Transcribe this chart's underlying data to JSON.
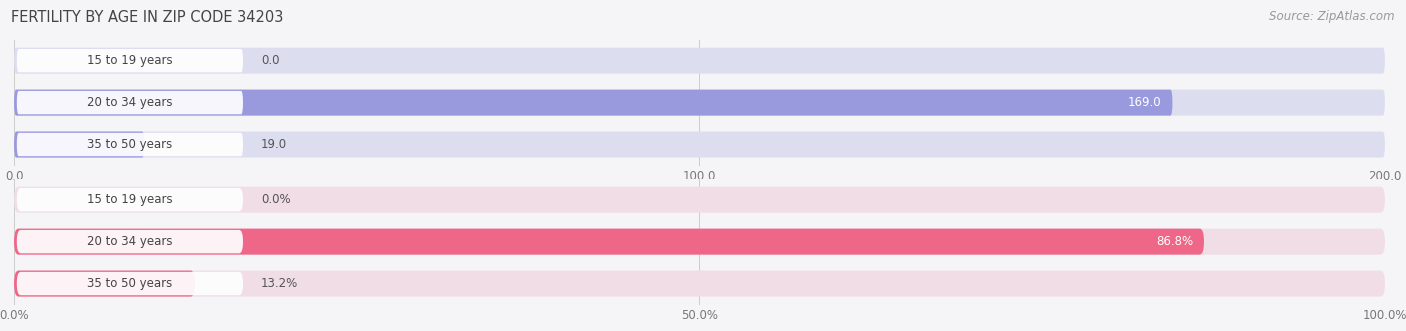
{
  "title": "FERTILITY BY AGE IN ZIP CODE 34203",
  "source": "Source: ZipAtlas.com",
  "top_chart": {
    "categories": [
      "15 to 19 years",
      "20 to 34 years",
      "35 to 50 years"
    ],
    "values": [
      0.0,
      169.0,
      19.0
    ],
    "xlim": [
      0,
      200
    ],
    "xticks": [
      0.0,
      100.0,
      200.0
    ],
    "xtick_labels": [
      "0.0",
      "100.0",
      "200.0"
    ],
    "bar_color": "#9999dd",
    "bar_bg_color": "#ddddf0"
  },
  "bottom_chart": {
    "categories": [
      "15 to 19 years",
      "20 to 34 years",
      "35 to 50 years"
    ],
    "values": [
      0.0,
      86.8,
      13.2
    ],
    "xlim": [
      0,
      100
    ],
    "xticks": [
      0.0,
      50.0,
      100.0
    ],
    "xtick_labels": [
      "0.0%",
      "50.0%",
      "100.0%"
    ],
    "bar_color": "#ee6688",
    "bar_bg_color": "#f0dde5"
  },
  "background_color": "#f5f5f8",
  "label_bg_color": "#ffffff",
  "bar_height": 0.62,
  "title_fontsize": 10.5,
  "source_fontsize": 8.5,
  "label_fontsize": 8.5,
  "tick_fontsize": 8.5,
  "category_fontsize": 8.5
}
